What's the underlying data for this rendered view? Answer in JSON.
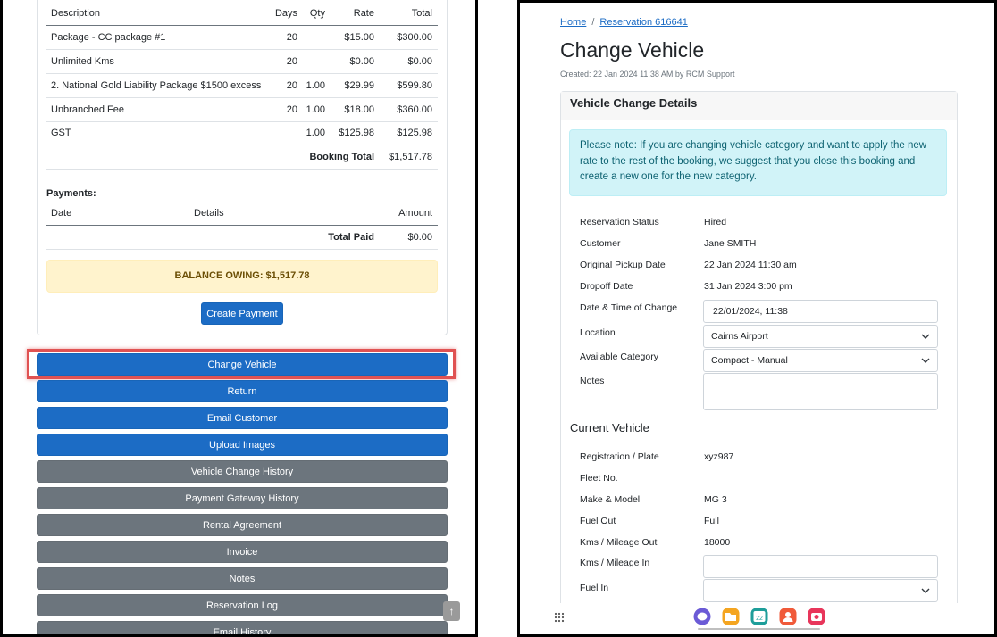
{
  "left": {
    "table": {
      "headers": {
        "description": "Description",
        "days": "Days",
        "qty": "Qty",
        "rate": "Rate",
        "total": "Total"
      },
      "rows": [
        {
          "description": "Package - CC package #1",
          "days": "20",
          "qty": "",
          "rate": "$15.00",
          "total": "$300.00"
        },
        {
          "description": "Unlimited Kms",
          "days": "20",
          "qty": "",
          "rate": "$0.00",
          "total": "$0.00"
        },
        {
          "description": "2. National Gold Liability Package $1500 excess",
          "days": "20",
          "qty": "1.00",
          "rate": "$29.99",
          "total": "$599.80"
        },
        {
          "description": "Unbranched Fee",
          "days": "20",
          "qty": "1.00",
          "rate": "$18.00",
          "total": "$360.00"
        },
        {
          "description": "GST",
          "days": "",
          "qty": "1.00",
          "rate": "$125.98",
          "total": "$125.98"
        }
      ],
      "booking_total_label": "Booking Total",
      "booking_total_value": "$1,517.78"
    },
    "payments": {
      "heading": "Payments:",
      "headers": {
        "date": "Date",
        "details": "Details",
        "amount": "Amount"
      },
      "total_paid_label": "Total Paid",
      "total_paid_value": "$0.00"
    },
    "balance_text": "BALANCE OWING: $1,517.78",
    "create_payment_label": "Create Payment",
    "actions": [
      {
        "label": "Change Vehicle",
        "style": "primary"
      },
      {
        "label": "Return",
        "style": "primary"
      },
      {
        "label": "Email Customer",
        "style": "primary"
      },
      {
        "label": "Upload Images",
        "style": "primary"
      },
      {
        "label": "Vehicle Change History",
        "style": "secondary"
      },
      {
        "label": "Payment Gateway History",
        "style": "secondary"
      },
      {
        "label": "Rental Agreement",
        "style": "secondary"
      },
      {
        "label": "Invoice",
        "style": "secondary"
      },
      {
        "label": "Notes",
        "style": "secondary"
      },
      {
        "label": "Reservation Log",
        "style": "secondary"
      },
      {
        "label": "Email History",
        "style": "secondary"
      }
    ],
    "scroll_top_glyph": "↑"
  },
  "right": {
    "breadcrumb": {
      "home": "Home",
      "separator": "/",
      "reservation": "Reservation 616641"
    },
    "title": "Change Vehicle",
    "created": "Created: 22 Jan 2024 11:38 AM by RCM Support",
    "card_header": "Vehicle Change Details",
    "alert": "Please note: If you are changing vehicle category and want to apply the new rate to the rest of the booking, we suggest that you close this booking and create a new one for the new category.",
    "details": {
      "reservation_status_label": "Reservation Status",
      "reservation_status_value": "Hired",
      "customer_label": "Customer",
      "customer_value": "Jane SMITH",
      "original_pickup_label": "Original Pickup Date",
      "original_pickup_value": "22 Jan 2024 11:30 am",
      "dropoff_label": "Dropoff Date",
      "dropoff_value": "31 Jan 2024 3:00 pm",
      "change_time_label": "Date & Time of Change",
      "change_time_value": "22/01/2024, 11:38",
      "location_label": "Location",
      "location_value": "Cairns Airport",
      "category_label": "Available Category",
      "category_value": "Compact - Manual",
      "notes_label": "Notes"
    },
    "current_vehicle": {
      "title": "Current Vehicle",
      "registration_label": "Registration / Plate",
      "registration_value": "xyz987",
      "fleet_label": "Fleet No.",
      "make_model_label": "Make & Model",
      "make_model_value": "MG 3",
      "fuel_out_label": "Fuel Out",
      "fuel_out_value": "Full",
      "kms_out_label": "Kms / Mileage Out",
      "kms_out_value": "18000",
      "kms_in_label": "Kms / Mileage In",
      "fuel_in_label": "Fuel In"
    },
    "dock_icons": [
      "messages-icon",
      "files-icon",
      "calendar-icon",
      "contacts-icon",
      "camera-icon"
    ],
    "calendar_day": "22"
  },
  "colors": {
    "primary": "#1c6cc5",
    "secondary": "#6c757d",
    "highlight": "#e05252",
    "warning_bg": "#fff3cd",
    "info_bg": "#d1f3f8"
  }
}
